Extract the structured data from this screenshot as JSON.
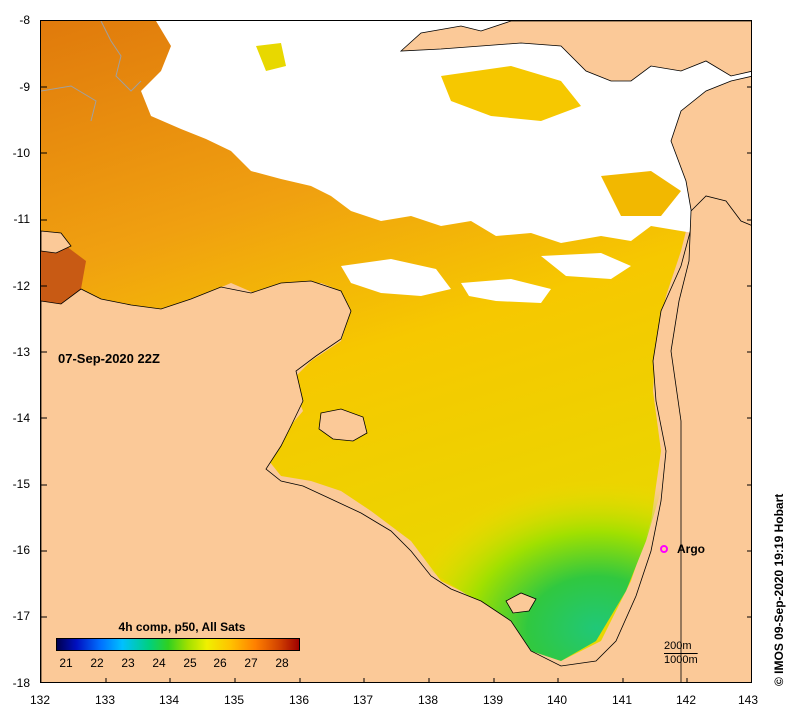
{
  "map": {
    "timestamp": "07-Sep-2020 22Z",
    "copyright": "© IMOS 09-Sep-2020 19:19 Hobart",
    "y_ticks": [
      "-8",
      "-9",
      "-10",
      "-11",
      "-12",
      "-13",
      "-14",
      "-15",
      "-16",
      "-17",
      "-18"
    ],
    "x_ticks": [
      "132",
      "133",
      "134",
      "135",
      "136",
      "137",
      "138",
      "139",
      "140",
      "141",
      "142",
      "143"
    ],
    "argo_label": "Argo",
    "argo_color": "#ff00ff",
    "land_color": "#fbc998",
    "cloud_color": "#ffffff",
    "depth_legend": [
      "200m",
      "1000m"
    ]
  },
  "legend": {
    "title": "4h comp, p50, All Sats",
    "ticks": [
      "21",
      "22",
      "23",
      "24",
      "25",
      "26",
      "27",
      "28"
    ]
  }
}
